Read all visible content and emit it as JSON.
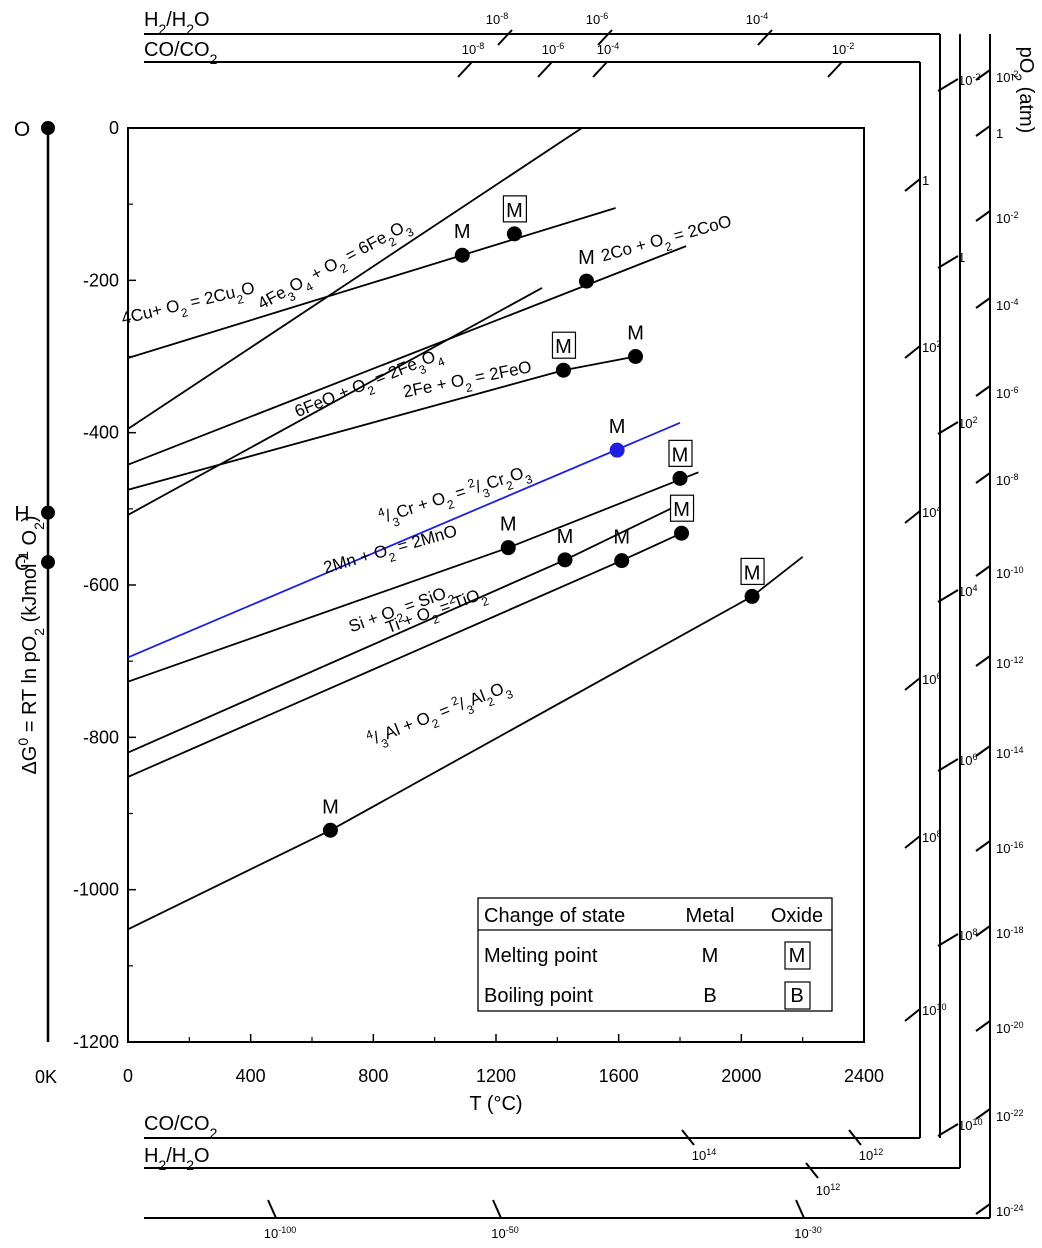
{
  "chart_data": {
    "type": "line",
    "xlabel": "T (°C)",
    "ylabel": "ΔG⁰ = RT ln pO₂ (kJmol⁻¹ O₂)",
    "xlim": [
      0,
      2400
    ],
    "ylim": [
      -1200,
      0
    ],
    "x_ticks": [
      "0",
      "400",
      "800",
      "1200",
      "1600",
      "2000",
      "2400"
    ],
    "y_ticks": [
      "0",
      "-200",
      "-400",
      "-600",
      "-800",
      "-1000",
      "-1200"
    ],
    "absolute_zero_label": "0K",
    "side_points": [
      {
        "label": "O",
        "y": 0
      },
      {
        "label": "H",
        "y": -505
      },
      {
        "label": "C",
        "y": -570
      }
    ],
    "series": [
      {
        "id": "fe3o4",
        "label": "4Fe₃O₄ + O₂ = 6Fe₂O₃",
        "color": "#000000",
        "points": [
          [
            0,
            -395
          ],
          [
            1480,
            0
          ]
        ],
        "markers": [],
        "label_x": 680,
        "label_y": -185,
        "label_angle": -28.6
      },
      {
        "id": "cu2o",
        "label": "4Cu+ O₂ = 2Cu₂O",
        "color": "#000000",
        "points": [
          [
            0,
            -302
          ],
          [
            1590,
            -105
          ]
        ],
        "markers": [
          {
            "x": 1090,
            "y": -167,
            "letter": "M",
            "boxed": false
          },
          {
            "x": 1260,
            "y": -139,
            "letter": "M",
            "boxed": true
          }
        ],
        "label_x": 200,
        "label_y": -237,
        "label_angle": -13.4
      },
      {
        "id": "coo",
        "label": "2Co + O₂ = 2CoO",
        "color": "#000000",
        "points": [
          [
            0,
            -442
          ],
          [
            1820,
            -155
          ]
        ],
        "markers": [
          {
            "x": 1495,
            "y": -201,
            "letter": "M",
            "boxed": false
          }
        ],
        "label_x": 1760,
        "label_y": -152,
        "label_angle": -15.3
      },
      {
        "id": "fe3o4b",
        "label": "6FeO + O₂ = 2Fe₃O₄",
        "color": "#000000",
        "points": [
          [
            0,
            -508
          ],
          [
            1350,
            -210
          ]
        ],
        "markers": [],
        "label_x": 790,
        "label_y": -341,
        "label_angle": -22.2
      },
      {
        "id": "feo",
        "label": "2Fe + O₂ = 2FeO",
        "color": "#000000",
        "points": [
          [
            0,
            -475
          ],
          [
            1420,
            -318
          ],
          [
            1655,
            -300
          ]
        ],
        "markers": [
          {
            "x": 1420,
            "y": -318,
            "letter": "M",
            "boxed": true
          },
          {
            "x": 1655,
            "y": -300,
            "letter": "M",
            "boxed": false
          }
        ],
        "label_x": 1110,
        "label_y": -337,
        "label_angle": -11.3
      },
      {
        "id": "cr2o3",
        "label": "⁴/₃Cr + O₂ = ²/₃Cr₂O₃",
        "color": "#1f1fe0",
        "points": [
          [
            0,
            -695
          ],
          [
            1800,
            -387
          ]
        ],
        "markers": [
          {
            "x": 1595,
            "y": -423,
            "letter": "M",
            "boxed": false
          }
        ],
        "label_x": 1070,
        "label_y": -488,
        "label_angle": -17.8
      },
      {
        "id": "mno",
        "label": "2Mn + O₂ = 2MnO",
        "color": "#000000",
        "points": [
          [
            0,
            -727
          ],
          [
            1240,
            -551
          ],
          [
            1860,
            -452
          ]
        ],
        "markers": [
          {
            "x": 1240,
            "y": -551,
            "letter": "M",
            "boxed": false
          },
          {
            "x": 1800,
            "y": -460,
            "letter": "M",
            "boxed": true
          }
        ],
        "label_x": 860,
        "label_y": -560,
        "label_angle": -15.9
      },
      {
        "id": "sio2",
        "label": "Si + O₂ = SiO₂",
        "color": "#000000",
        "points": [
          [
            0,
            -820
          ],
          [
            1425,
            -567
          ],
          [
            1810,
            -492
          ]
        ],
        "markers": [
          {
            "x": 1425,
            "y": -567,
            "letter": "M",
            "boxed": false
          }
        ],
        "label_x": 895,
        "label_y": -638,
        "label_angle": -19.9
      },
      {
        "id": "tio2",
        "label": "Ti + O₂ = TiO₂",
        "color": "#000000",
        "points": [
          [
            0,
            -852
          ],
          [
            1610,
            -568
          ],
          [
            1805,
            -532
          ]
        ],
        "markers": [
          {
            "x": 1610,
            "y": -568,
            "letter": "M",
            "boxed": false
          },
          {
            "x": 1805,
            "y": -532,
            "letter": "M",
            "boxed": true
          }
        ],
        "label_x": 1010,
        "label_y": -640,
        "label_angle": -19.9
      },
      {
        "id": "al2o3",
        "label": "⁴/₃Al + O₂ = ²/₃Al₂O₃",
        "color": "#000000",
        "points": [
          [
            0,
            -1052
          ],
          [
            660,
            -922
          ],
          [
            2035,
            -615
          ],
          [
            2200,
            -563
          ]
        ],
        "markers": [
          {
            "x": 660,
            "y": -922,
            "letter": "M",
            "boxed": false
          },
          {
            "x": 2035,
            "y": -615,
            "letter": "M",
            "boxed": true
          }
        ],
        "label_x": 1020,
        "label_y": -775,
        "label_angle": -21.5
      }
    ],
    "legend": {
      "placement": "bottom-right",
      "headers": [
        "Change of state",
        "Metal",
        "Oxide"
      ],
      "rows": [
        {
          "label": "Melting point",
          "metal": "M",
          "oxide": "M"
        },
        {
          "label": "Boiling point",
          "metal": "B",
          "oxide": "B"
        }
      ]
    },
    "nomograms": {
      "po2_title": "pO₂ (atm)",
      "top_h2_label": "H₂/H₂O",
      "top_co_label": "CO/CO₂",
      "bottom_co_label": "CO/CO₂",
      "bottom_h2_label": "H₂/H₂O",
      "top_h2_ticks": [
        "10⁻⁸",
        "10⁻⁶",
        "10⁻⁴"
      ],
      "top_co_ticks": [
        "10⁻⁸",
        "10⁻⁶",
        "10⁻⁴",
        "10⁻²"
      ],
      "right_co_ticks": [
        "1",
        "10²",
        "10⁴",
        "10⁶",
        "10⁸",
        "10¹⁰"
      ],
      "right_h2_ticks": [
        "10⁻²",
        "1",
        "10²",
        "10⁴",
        "10⁶",
        "10⁸",
        "10¹⁰"
      ],
      "bottom_co_ticks": [
        "10¹⁴",
        "10¹²"
      ],
      "bottom_h2_ticks": [
        "10¹²"
      ],
      "po2_right_ticks": [
        "10⁻²",
        "1",
        "10⁻²",
        "10⁻⁴",
        "10⁻⁶",
        "10⁻⁸",
        "10⁻¹⁰",
        "10⁻¹²",
        "10⁻¹⁴",
        "10⁻¹⁶",
        "10⁻¹⁸",
        "10⁻²⁰",
        "10⁻²²",
        "10⁻²⁴"
      ],
      "po2_bottom_ticks": [
        "10⁻¹⁰⁰",
        "10⁻⁵⁰",
        "10⁻³⁰"
      ]
    }
  }
}
